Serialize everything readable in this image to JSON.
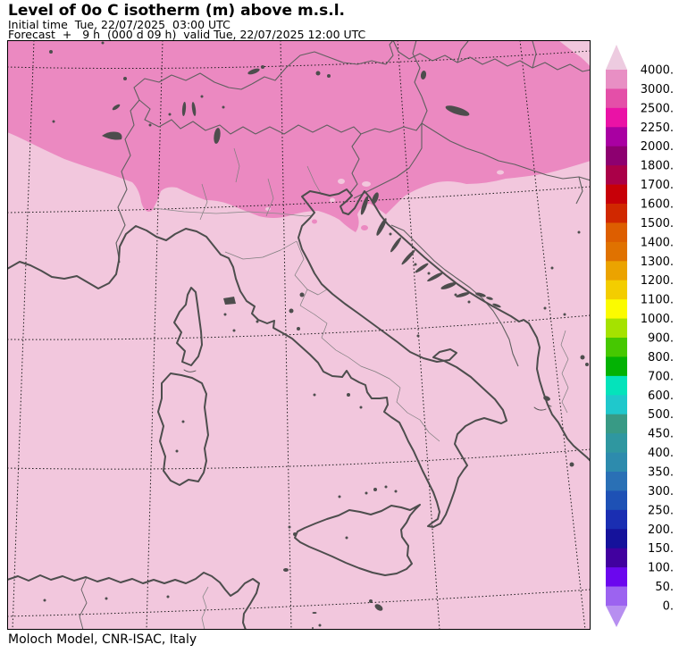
{
  "header": {
    "title": "Level of 0o C isotherm (m) above m.s.l.",
    "initial_time": "Initial time  Tue, 22/07/2025  03:00 UTC",
    "forecast": "Forecast  +   9 h  (000 d 09 h)  valid Tue, 22/07/2025 12:00 UTC"
  },
  "footer": {
    "credit": "Moloch Model, CNR-ISAC, Italy"
  },
  "colors": {
    "background": "#ffffff",
    "field_above_4000": "#f2c7dd",
    "field_3000_4000": "#eb89c1",
    "coastline": "#4d4d4d",
    "country_border": "#5f5f5f",
    "region_border": "#7d7d7d",
    "river": "#8a8a8a",
    "graticule": "#1a1a1a",
    "frame": "#000000",
    "text": "#000000"
  },
  "colorbar": {
    "unit": "m",
    "levels": [
      "4000.",
      "3000.",
      "2500.",
      "2250.",
      "2000.",
      "1800.",
      "1700.",
      "1600.",
      "1500.",
      "1400.",
      "1300.",
      "1200.",
      "1100.",
      "1000.",
      "900.",
      "800.",
      "700.",
      "600.",
      "500.",
      "450.",
      "400.",
      "350.",
      "300.",
      "250.",
      "200.",
      "150.",
      "100.",
      "50.",
      "0."
    ],
    "segment_colors_top_to_bottom": [
      "#e88fc4",
      "#e44fa8",
      "#ea12a6",
      "#a900a2",
      "#8d0070",
      "#aa0048",
      "#c70008",
      "#d02800",
      "#dd5e00",
      "#e07200",
      "#eba300",
      "#f3cd00",
      "#fbfb00",
      "#a5e200",
      "#46c801",
      "#03b204",
      "#04e3bb",
      "#1fc8cc",
      "#389a85",
      "#2f97a0",
      "#2d8bad",
      "#2a70b5",
      "#1e51b5",
      "#1a2eb2",
      "#15129b",
      "#41019f",
      "#6b07ee",
      "#9c63f0"
    ],
    "above_max_arrow_color": "#edcbe0",
    "below_min_arrow_color": "#b78ff0"
  }
}
